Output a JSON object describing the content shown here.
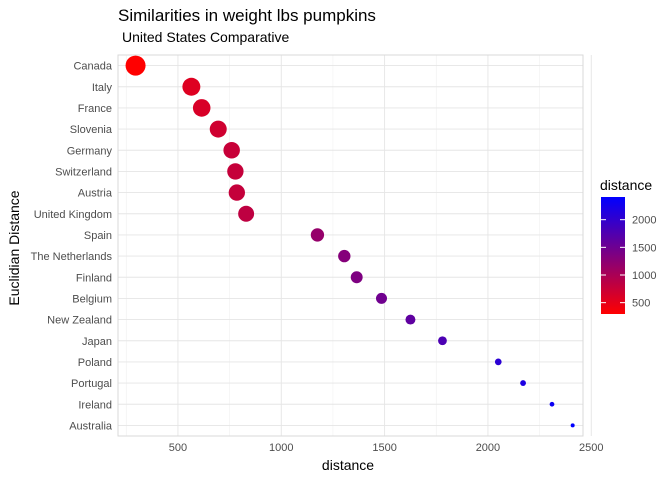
{
  "chart_data": {
    "type": "scatter",
    "title": "Similarities in weight lbs pumpkins",
    "subtitle": "United States Comparative",
    "xlabel": "distance",
    "ylabel": "Euclidian Distance",
    "xlim": [
      210,
      2460
    ],
    "x_ticks": [
      500,
      1000,
      1500,
      2000,
      2500
    ],
    "x_minor_ticks": [
      250,
      750,
      1250,
      1750,
      2250
    ],
    "categories": [
      "Canada",
      "Italy",
      "France",
      "Slovenia",
      "Germany",
      "Switzerland",
      "Austria",
      "United Kingdom",
      "Spain",
      "The Netherlands",
      "Finland",
      "Belgium",
      "New Zealand",
      "Japan",
      "Poland",
      "Portugal",
      "Ireland",
      "Australia"
    ],
    "values": [
      295,
      565,
      615,
      695,
      760,
      778,
      785,
      830,
      1175,
      1305,
      1365,
      1485,
      1625,
      1780,
      2050,
      2170,
      2310,
      2410
    ],
    "grid": true,
    "legend": {
      "title": "distance",
      "placement": "right",
      "ticks": [
        500,
        1000,
        1500,
        2000
      ],
      "range": [
        295,
        2410
      ],
      "color_low": "#ff0000",
      "color_high": "#0000ff"
    }
  }
}
